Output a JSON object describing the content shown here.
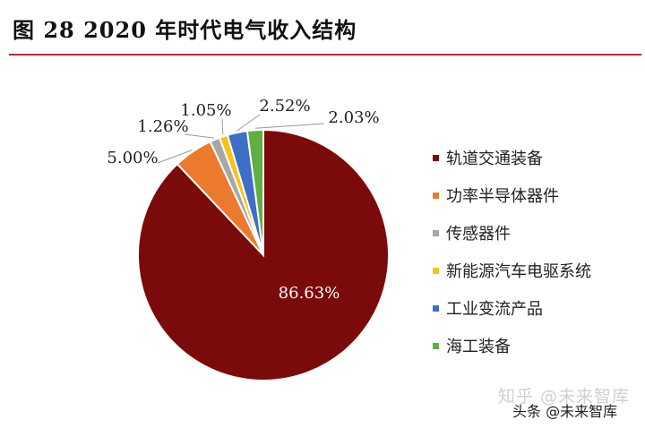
{
  "title": "图  28 2020 年时代电气收入结构",
  "chart_data": {
    "type": "pie",
    "categories": [
      "轨道交通装备",
      "功率半导体器件",
      "传感器件",
      "新能源汽车电驱系统",
      "工业变流产品",
      "海工装备"
    ],
    "values": [
      86.63,
      5.0,
      1.26,
      1.05,
      2.52,
      2.03
    ],
    "labels": [
      "86.63%",
      "5.00%",
      "1.26%",
      "1.05%",
      "2.52%",
      "2.03%"
    ],
    "colors": [
      "#7b0a0a",
      "#ec7a2c",
      "#a7a7a7",
      "#f7c21a",
      "#3e6fc7",
      "#5fae44"
    ],
    "legend_position": "right"
  },
  "watermark": "知乎 @未来智库",
  "footer": "头条 @未来智库"
}
